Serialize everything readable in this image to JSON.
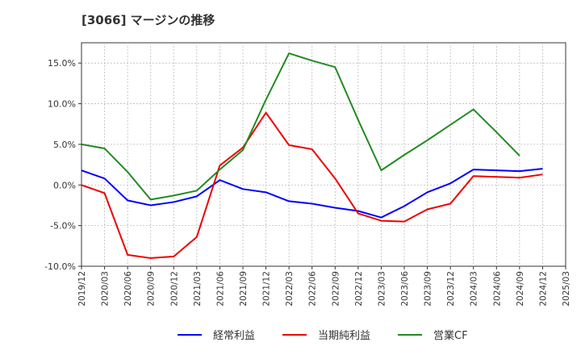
{
  "chart_data": {
    "type": "line",
    "title": "[3066]  マージンの推移",
    "xlabel": "",
    "ylabel": "",
    "categories": [
      "2019/12",
      "2020/03",
      "2020/06",
      "2020/09",
      "2020/12",
      "2021/03",
      "2021/06",
      "2021/09",
      "2021/12",
      "2022/03",
      "2022/06",
      "2022/09",
      "2022/12",
      "2023/03",
      "2023/06",
      "2023/09",
      "2023/12",
      "2024/03",
      "2024/06",
      "2024/09",
      "2024/12",
      "2025/03"
    ],
    "y_tick_labels": [
      "15.0%",
      "10.0%",
      "5.0%",
      "0.0%",
      "-5.0%",
      "-10.0%"
    ],
    "y_ticks": [
      15,
      10,
      5,
      0,
      -5,
      -10
    ],
    "ylim": [
      -10,
      17.5
    ],
    "grid": true,
    "legend_position": "bottom",
    "series": [
      {
        "name": "経常利益",
        "color": "#0000ff",
        "values": [
          1.8,
          0.8,
          -1.9,
          -2.5,
          -2.1,
          -1.4,
          0.6,
          -0.5,
          -0.9,
          -2.0,
          -2.3,
          -2.8,
          -3.2,
          -4.0,
          -2.6,
          -0.9,
          0.2,
          1.9,
          1.8,
          1.7,
          2.0,
          null
        ]
      },
      {
        "name": "当期純利益",
        "color": "#ee0000",
        "values": [
          0.0,
          -1.0,
          -8.6,
          -9.0,
          -8.8,
          -6.4,
          2.4,
          4.6,
          8.9,
          4.9,
          4.4,
          0.8,
          -3.5,
          -4.4,
          -4.5,
          -3.0,
          -2.3,
          1.1,
          1.0,
          0.9,
          1.3,
          null
        ]
      },
      {
        "name": "営業CF",
        "color": "#228b22",
        "values": [
          5.0,
          4.5,
          1.6,
          -1.8,
          -1.3,
          -0.7,
          1.9,
          4.3,
          10.5,
          16.2,
          15.3,
          14.5,
          8.0,
          1.8,
          3.7,
          5.5,
          7.4,
          9.3,
          6.5,
          3.6,
          null,
          null
        ]
      }
    ]
  }
}
